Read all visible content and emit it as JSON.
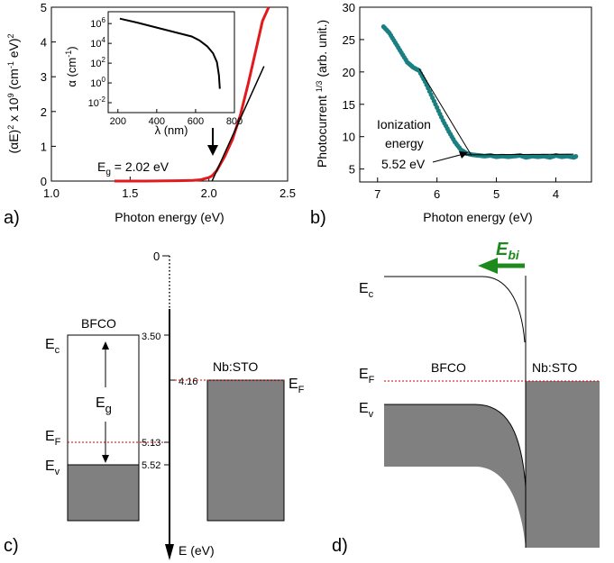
{
  "figure": {
    "panels": [
      "a)",
      "b)",
      "c)",
      "d)"
    ]
  },
  "chart_data": [
    {
      "type": "line",
      "panel": "a)",
      "xlabel": "Photon energy (eV)",
      "ylabel_html": "(αE)<sup>2</sup> x 10<sup>9</sup> (cm<sup>-1</sup> eV)<sup>2</sup>",
      "ylabel_parts": [
        "(αE)",
        "2",
        " x 10",
        "9",
        " (cm",
        "-1",
        " eV)",
        "2"
      ],
      "xlim": [
        1.0,
        2.5
      ],
      "ylim": [
        0,
        5
      ],
      "xticks": [
        1.0,
        1.5,
        2.0,
        2.5
      ],
      "xtick_labels": [
        "1.0",
        "1.5",
        "2.0",
        "2.5"
      ],
      "yticks": [
        0,
        1,
        2,
        3,
        4,
        5
      ],
      "ytick_labels": [
        "0",
        "1",
        "2",
        "3",
        "4",
        "5"
      ],
      "series": [
        {
          "color": "#e31a1c",
          "x": [
            1.4,
            1.6,
            1.8,
            1.9,
            1.95,
            2.0,
            2.02,
            2.05,
            2.1,
            2.15,
            2.2,
            2.25,
            2.3,
            2.34,
            2.38
          ],
          "y": [
            0.0,
            0.0,
            0.01,
            0.02,
            0.04,
            0.1,
            0.15,
            0.3,
            0.7,
            1.2,
            1.9,
            2.8,
            3.8,
            4.6,
            5.0
          ]
        },
        {
          "color": "#000000",
          "x": [
            2.02,
            2.35
          ],
          "y": [
            0.0,
            3.3
          ]
        }
      ],
      "annotation": "E_g = 2.02 eV",
      "annotation_parts": [
        "E",
        "g",
        " = 2.02 eV"
      ],
      "inset": {
        "type": "line",
        "xlabel": "λ (nm)",
        "ylabel": "α (cm",
        "ylabel_sup": "-1",
        "ylabel_end": ")",
        "xlim": [
          150,
          800
        ],
        "xticks": [
          200,
          400,
          600,
          800
        ],
        "xtick_labels": [
          "200",
          "400",
          "600",
          "800"
        ],
        "ylog_exponents": [
          -2,
          0,
          2,
          4,
          6
        ],
        "ytick_base": "10",
        "x": [
          210,
          300,
          400,
          500,
          580,
          620,
          660,
          690,
          710,
          720,
          725
        ],
        "log_y": [
          6.5,
          6.1,
          5.6,
          5.1,
          4.7,
          4.3,
          3.7,
          3.0,
          2.1,
          0.8,
          -0.6
        ]
      }
    },
    {
      "type": "scatter",
      "panel": "b)",
      "xlabel": "Photon energy (eV)",
      "ylabel_parts": [
        "Photocurrent ",
        "1/3",
        " (arb. unit.)"
      ],
      "xlim": [
        7.3,
        3.4
      ],
      "ylim": [
        3,
        30
      ],
      "xticks": [
        7,
        6,
        5,
        4
      ],
      "xtick_labels": [
        "7",
        "6",
        "5",
        "4"
      ],
      "yticks": [
        5,
        10,
        15,
        20,
        25,
        30
      ],
      "ytick_labels": [
        "5",
        "10",
        "15",
        "20",
        "25",
        "30"
      ],
      "marker_color": "#1a7f80",
      "x": [
        6.9,
        6.8,
        6.7,
        6.6,
        6.5,
        6.4,
        6.3,
        6.2,
        6.1,
        6.0,
        5.9,
        5.8,
        5.7,
        5.6,
        5.5,
        5.4,
        5.3,
        5.2,
        5.1,
        5.0,
        4.9,
        4.8,
        4.7,
        4.6,
        4.5,
        4.4,
        4.3,
        4.2,
        4.1,
        4.0,
        3.9,
        3.8,
        3.7,
        3.65
      ],
      "y": [
        27.0,
        26.0,
        24.5,
        23.0,
        21.5,
        20.7,
        20.2,
        18.5,
        16.5,
        14.5,
        12.5,
        10.8,
        9.2,
        8.0,
        7.4,
        7.2,
        7.1,
        7.0,
        7.1,
        6.9,
        7.0,
        6.9,
        7.0,
        7.1,
        6.8,
        7.0,
        6.9,
        7.0,
        6.8,
        7.1,
        6.9,
        7.0,
        6.8,
        7.0
      ],
      "fit_lines": [
        {
          "x": [
            6.3,
            5.42
          ],
          "y": [
            20.5,
            7.1
          ]
        },
        {
          "x": [
            5.55,
            3.7
          ],
          "y": [
            7.2,
            7.3
          ]
        }
      ],
      "annotation_lines": [
        "Ionization",
        "energy",
        "5.52 eV"
      ]
    }
  ],
  "diagram_c": {
    "panel": "c)",
    "zero_label": "0",
    "axis_label": "E (eV)",
    "left": {
      "name": "BFCO",
      "ec_label": [
        "E",
        "c"
      ],
      "eg_label": [
        "E",
        "g"
      ],
      "ef_label": [
        "E",
        "F"
      ],
      "ev_label": [
        "E",
        "v"
      ],
      "ec_value": "3.50",
      "ef_value": "5.13",
      "ev_value": "5.52"
    },
    "right": {
      "name": "Nb:STO",
      "ef_label": [
        "E",
        "F"
      ],
      "ef_value": "4.16"
    },
    "fermi_color": "#cc0000",
    "fill_color": "#808080"
  },
  "diagram_d": {
    "panel": "d)",
    "field_label": [
      "E",
      "bi"
    ],
    "field_color": "#1e8a1e",
    "ec_label": [
      "E",
      "c"
    ],
    "ef_label": [
      "E",
      "F"
    ],
    "ev_label": [
      "E",
      "v"
    ],
    "left_name": "BFCO",
    "right_name": "Nb:STO",
    "fermi_color": "#cc0000",
    "fill_color": "#808080"
  }
}
